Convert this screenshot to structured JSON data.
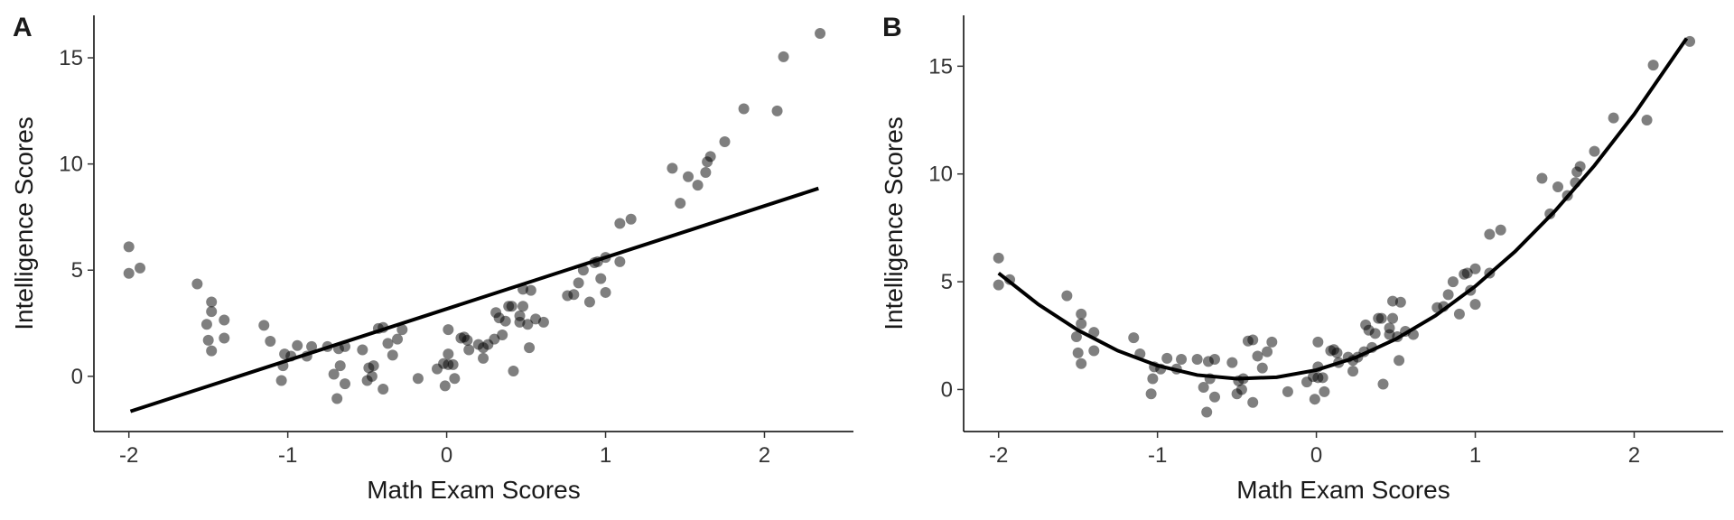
{
  "chart_data": [
    {
      "type": "scatter",
      "tag": "A",
      "x_label": "Math Exam Scores",
      "y_label": "Intelligence Scores",
      "point_color": "#000000",
      "point_opacity": 0.5,
      "line_color": "#000000",
      "xlim": [
        -2.22,
        2.56
      ],
      "ylim": [
        -2.6,
        17.0
      ],
      "xticks": [
        -2,
        -1,
        0,
        1,
        2
      ],
      "yticks": [
        0,
        5,
        10,
        15
      ],
      "x": [
        -2,
        -2,
        -1.93,
        -1.57,
        -1.48,
        -1.48,
        -1.51,
        -1.4,
        -1.5,
        -1.48,
        -1.4,
        -1.15,
        -1.11,
        -1.02,
        -1.03,
        -1.04,
        -0.98,
        -0.94,
        -0.88,
        -0.85,
        -0.75,
        -0.68,
        -0.64,
        -0.71,
        -0.67,
        -0.64,
        -0.69,
        -0.53,
        -0.46,
        -0.43,
        -0.4,
        -0.37,
        -0.5,
        -0.47,
        -0.49,
        -0.4,
        -0.34,
        -0.31,
        -0.28,
        -0.18,
        -0.06,
        -0.02,
        0.01,
        -0.01,
        0.01,
        0.01,
        0.05,
        0.04,
        0.09,
        0.11,
        0.13,
        0.14,
        0.2,
        0.23,
        0.23,
        0.26,
        0.3,
        0.31,
        0.33,
        0.35,
        0.37,
        0.39,
        0.41,
        0.42,
        0.46,
        0.46,
        0.48,
        0.48,
        0.53,
        0.51,
        0.56,
        0.61,
        0.52,
        0.76,
        0.8,
        0.83,
        0.86,
        0.9,
        0.93,
        0.95,
        1.0,
        0.97,
        1.0,
        1.09,
        1.09,
        1.16,
        1.42,
        1.47,
        1.52,
        1.58,
        1.63,
        1.64,
        1.66,
        1.75,
        1.87,
        2.08,
        2.12,
        2.35
      ],
      "y": [
        6.1,
        4.85,
        5.1,
        4.35,
        3.5,
        3.05,
        2.45,
        2.65,
        1.7,
        1.2,
        1.8,
        2.4,
        1.65,
        1.05,
        0.5,
        -0.2,
        0.95,
        1.45,
        0.95,
        1.4,
        1.4,
        1.3,
        1.4,
        0.1,
        0.5,
        -0.35,
        -1.05,
        1.25,
        0.5,
        2.25,
        2.3,
        1.55,
        -0.2,
        0,
        0.4,
        -0.6,
        1.0,
        1.75,
        2.2,
        -0.1,
        0.35,
        0.6,
        0.55,
        -0.45,
        1.05,
        2.2,
        -0.1,
        0.55,
        1.8,
        1.85,
        1.7,
        1.25,
        1.5,
        1.35,
        0.85,
        1.5,
        1.75,
        3.0,
        2.75,
        1.95,
        2.6,
        3.3,
        3.3,
        0.25,
        2.55,
        2.85,
        3.3,
        4.1,
        4.05,
        2.45,
        2.7,
        2.55,
        1.35,
        3.8,
        3.85,
        4.4,
        5.0,
        3.5,
        5.35,
        5.4,
        5.6,
        4.6,
        3.95,
        5.4,
        7.2,
        7.4,
        9.8,
        8.15,
        9.4,
        9.0,
        9.6,
        10.1,
        10.35,
        11.05,
        12.6,
        12.5,
        15.05,
        16.15
      ],
      "fit": {
        "x": [
          -1.99,
          2.34
        ],
        "y": [
          -1.65,
          8.85
        ]
      }
    },
    {
      "type": "scatter",
      "tag": "B",
      "x_label": "Math Exam Scores",
      "y_label": "Intelligence Scores",
      "point_color": "#000000",
      "point_opacity": 0.5,
      "line_color": "#000000",
      "xlim": [
        -2.22,
        2.56
      ],
      "ylim": [
        -1.95,
        17.36
      ],
      "xticks": [
        -2,
        -1,
        0,
        1,
        2
      ],
      "yticks": [
        0,
        5,
        10,
        15
      ],
      "x": [
        -2,
        -2,
        -1.93,
        -1.57,
        -1.48,
        -1.48,
        -1.51,
        -1.4,
        -1.5,
        -1.48,
        -1.4,
        -1.15,
        -1.11,
        -1.02,
        -1.03,
        -1.04,
        -0.98,
        -0.94,
        -0.88,
        -0.85,
        -0.75,
        -0.68,
        -0.64,
        -0.71,
        -0.67,
        -0.64,
        -0.69,
        -0.53,
        -0.46,
        -0.43,
        -0.4,
        -0.37,
        -0.5,
        -0.47,
        -0.49,
        -0.4,
        -0.34,
        -0.31,
        -0.28,
        -0.18,
        -0.06,
        -0.02,
        0.01,
        -0.01,
        0.01,
        0.01,
        0.05,
        0.04,
        0.09,
        0.11,
        0.13,
        0.14,
        0.2,
        0.23,
        0.23,
        0.26,
        0.3,
        0.31,
        0.33,
        0.35,
        0.37,
        0.39,
        0.41,
        0.42,
        0.46,
        0.46,
        0.48,
        0.48,
        0.53,
        0.51,
        0.56,
        0.61,
        0.52,
        0.76,
        0.8,
        0.83,
        0.86,
        0.9,
        0.93,
        0.95,
        1.0,
        0.97,
        1.0,
        1.09,
        1.09,
        1.16,
        1.42,
        1.47,
        1.52,
        1.58,
        1.63,
        1.64,
        1.66,
        1.75,
        1.87,
        2.08,
        2.12,
        2.35
      ],
      "y": [
        6.1,
        4.85,
        5.1,
        4.35,
        3.5,
        3.05,
        2.45,
        2.65,
        1.7,
        1.2,
        1.8,
        2.4,
        1.65,
        1.05,
        0.5,
        -0.2,
        0.95,
        1.45,
        0.95,
        1.4,
        1.4,
        1.3,
        1.4,
        0.1,
        0.5,
        -0.35,
        -1.05,
        1.25,
        0.5,
        2.25,
        2.3,
        1.55,
        -0.2,
        0,
        0.4,
        -0.6,
        1.0,
        1.75,
        2.2,
        -0.1,
        0.35,
        0.6,
        0.55,
        -0.45,
        1.05,
        2.2,
        -0.1,
        0.55,
        1.8,
        1.85,
        1.7,
        1.25,
        1.5,
        1.35,
        0.85,
        1.5,
        1.75,
        3.0,
        2.75,
        1.95,
        2.6,
        3.3,
        3.3,
        0.25,
        2.55,
        2.85,
        3.3,
        4.1,
        4.05,
        2.45,
        2.7,
        2.55,
        1.35,
        3.8,
        3.85,
        4.4,
        5.0,
        3.5,
        5.35,
        5.4,
        5.6,
        4.6,
        3.95,
        5.4,
        7.2,
        7.4,
        9.8,
        8.15,
        9.4,
        9.0,
        9.6,
        10.1,
        10.35,
        11.05,
        12.6,
        12.5,
        15.05,
        16.15
      ],
      "fit": {
        "x": [
          -2,
          -1.75,
          -1.5,
          -1.25,
          -1,
          -0.75,
          -0.5,
          -0.25,
          0,
          0.25,
          0.5,
          0.75,
          1,
          1.25,
          1.5,
          1.75,
          2,
          2.33
        ],
        "y": [
          5.4,
          3.95,
          2.75,
          1.8,
          1.11,
          0.67,
          0.5,
          0.57,
          0.9,
          1.49,
          2.34,
          3.43,
          4.79,
          6.4,
          8.27,
          10.39,
          12.77,
          16.29
        ]
      }
    }
  ]
}
